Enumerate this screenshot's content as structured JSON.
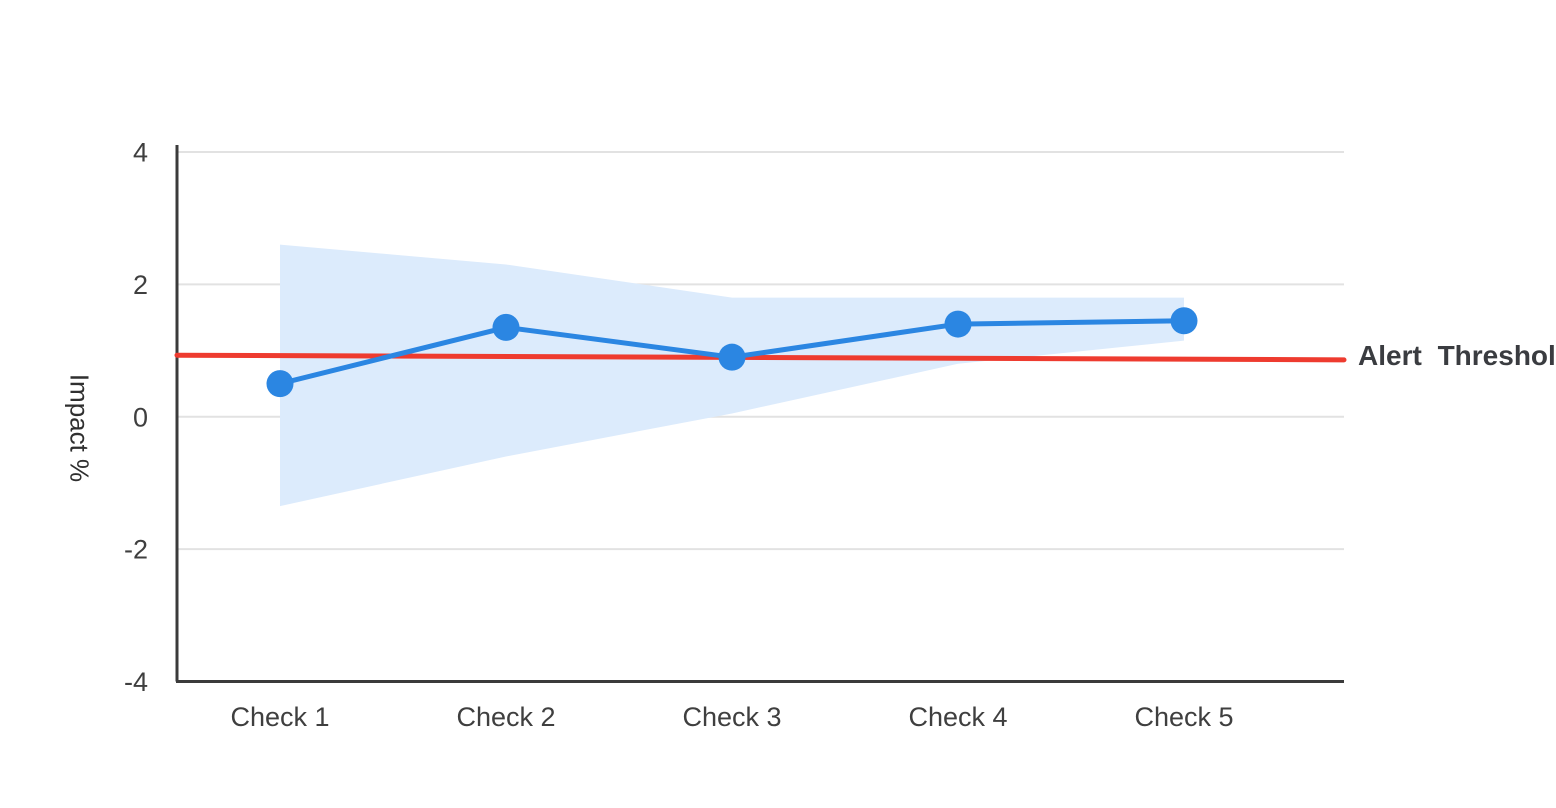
{
  "chart_data": {
    "type": "line",
    "categories": [
      "Check 1",
      "Check 2",
      "Check 3",
      "Check 4",
      "Check 5"
    ],
    "series": [
      {
        "name": "Impact",
        "values": [
          0.5,
          1.35,
          0.9,
          1.4,
          1.45
        ]
      }
    ],
    "confidence_band": {
      "upper": [
        2.6,
        2.3,
        1.8,
        1.8,
        1.8
      ],
      "lower": [
        -1.35,
        -0.6,
        0.05,
        0.8,
        1.15
      ]
    },
    "threshold": {
      "label": "Alert Threshold",
      "start_value": 0.93,
      "end_value": 0.86
    },
    "title": "",
    "xlabel": "",
    "ylabel": "Impact %",
    "ylim": [
      -4,
      4
    ],
    "yticks": [
      4,
      2,
      0,
      -2,
      -4
    ],
    "grid": true,
    "legend_position": "threshold label at right end of threshold line"
  },
  "colors": {
    "line": "#2b86e2",
    "point": "#2b86e2",
    "band": "#dcebfc",
    "threshold": "#ee3b2f",
    "grid": "#e2e2e2",
    "axis": "#3b3b3b",
    "tick_text": "#3f3f3f",
    "threshold_label_text": "#3a3c40",
    "background": "#ffffff"
  }
}
